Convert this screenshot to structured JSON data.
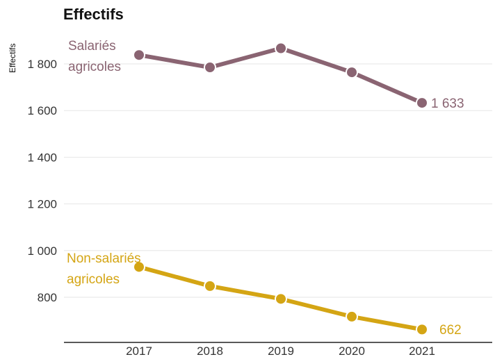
{
  "chart_data": {
    "type": "line",
    "title": "Effectifs",
    "ylabel": "Effectifs",
    "xlabel": "",
    "x": [
      "2017",
      "2018",
      "2019",
      "2020",
      "2021"
    ],
    "ylim": [
      640,
      1960
    ],
    "yticks": [
      800,
      1000,
      1200,
      1400,
      1600,
      1800
    ],
    "ytick_labels": [
      "800",
      "1 000",
      "1 200",
      "1 400",
      "1 600",
      "1 800"
    ],
    "grid": "horizontal",
    "series": [
      {
        "name_lines": [
          "Salariés",
          "agricoles"
        ],
        "values": [
          1838,
          1785,
          1867,
          1764,
          1633
        ],
        "end_label": "1 633",
        "color": "#8a6472"
      },
      {
        "name_lines": [
          "Non-salariés",
          "agricoles"
        ],
        "values": [
          930,
          848,
          793,
          717,
          662
        ],
        "end_label": "662",
        "color": "#d4a514"
      }
    ]
  }
}
